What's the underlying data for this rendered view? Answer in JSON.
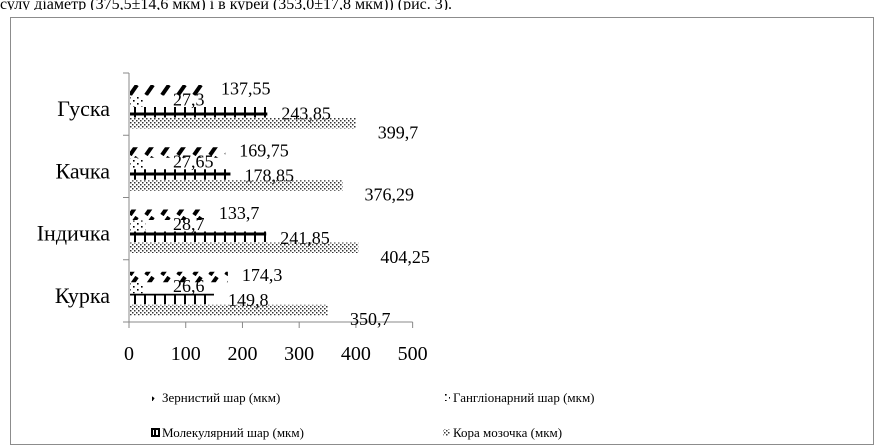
{
  "caption": "сулу діаметр (375,5±14,6 мкм) і в курей (353,0±17,8 мкм)) (рис. 3).",
  "chart_data": {
    "type": "bar",
    "orientation": "horizontal",
    "categories": [
      "Курка",
      "Індичка",
      "Качка",
      "Гуска"
    ],
    "series": [
      {
        "name": "Зернистий шар (мкм)",
        "values": [
          174.3,
          133.7,
          169.75,
          137.55
        ],
        "labels": [
          "174,3",
          "133,7",
          "169,75",
          "137,55"
        ],
        "pattern": "diagonal-dashes"
      },
      {
        "name": "Гангліонарний шар (мкм)",
        "values": [
          26.6,
          28.7,
          27.65,
          27.3
        ],
        "labels": [
          "26,6",
          "28,7",
          "27,65",
          "27,3"
        ],
        "pattern": "dots"
      },
      {
        "name": "Молекулярний шар (мкм)",
        "values": [
          149.8,
          241.85,
          178.85,
          243.85
        ],
        "labels": [
          "149,8",
          "241,85",
          "178,85",
          "243,85"
        ],
        "pattern": "ticks"
      },
      {
        "name": "Кора мозочка (мкм)",
        "values": [
          350.7,
          404.25,
          376.29,
          399.7
        ],
        "labels": [
          "350,7",
          "404,25",
          "376,29",
          "399,7"
        ],
        "pattern": "crosshatch"
      }
    ],
    "xlim": [
      0,
      500
    ],
    "xticks": [
      "0",
      "100",
      "200",
      "300",
      "400",
      "500"
    ],
    "legend_position": "bottom",
    "grid": false
  }
}
